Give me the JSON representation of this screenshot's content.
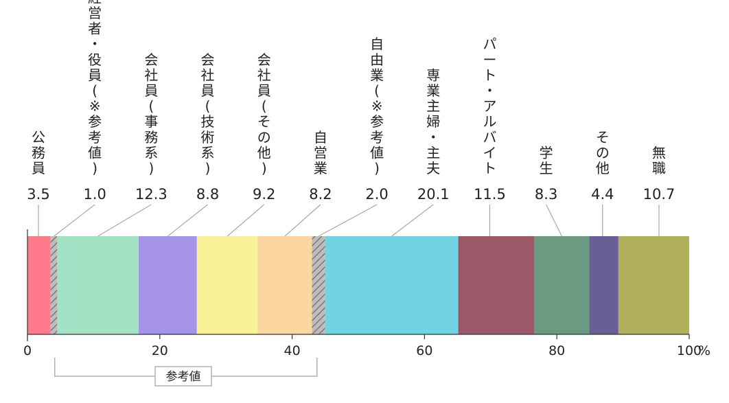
{
  "chart_data": {
    "type": "bar",
    "orientation": "horizontal-stacked",
    "unit": "%",
    "xlim": [
      0,
      100
    ],
    "ticks": [
      "0",
      "20",
      "40",
      "60",
      "80",
      "100"
    ],
    "tick_values": [
      0,
      20,
      40,
      60,
      80,
      100
    ],
    "segments": [
      {
        "label": "公務員",
        "value": 3.5,
        "display": "3.5",
        "color": "#ff7b8c",
        "hatched": false
      },
      {
        "label": "経営者・役員(※参考値)",
        "value": 1.0,
        "display": "1.0",
        "color": "#b8b8b8",
        "hatched": true
      },
      {
        "label": "会社員(事務系)",
        "value": 12.3,
        "display": "12.3",
        "color": "#a2e3c6",
        "hatched": false
      },
      {
        "label": "会社員(技術系)",
        "value": 8.8,
        "display": "8.8",
        "color": "#a593ea",
        "hatched": false
      },
      {
        "label": "会社員(その他)",
        "value": 9.2,
        "display": "9.2",
        "color": "#f8f394",
        "hatched": false
      },
      {
        "label": "自営業",
        "value": 8.2,
        "display": "8.2",
        "color": "#fcd6a1",
        "hatched": false
      },
      {
        "label": "自由業(※参考値)",
        "value": 2.0,
        "display": "2.0",
        "color": "#b8b8b8",
        "hatched": true
      },
      {
        "label": "専業主婦・主夫",
        "value": 20.1,
        "display": "20.1",
        "color": "#72d4e3",
        "hatched": false
      },
      {
        "label": "パート・アルバイト",
        "value": 11.5,
        "display": "11.5",
        "color": "#9b5869",
        "hatched": false
      },
      {
        "label": "学生",
        "value": 8.3,
        "display": "8.3",
        "color": "#6a9b82",
        "hatched": false
      },
      {
        "label": "その他",
        "value": 4.4,
        "display": "4.4",
        "color": "#695e96",
        "hatched": false
      },
      {
        "label": "無職",
        "value": 10.7,
        "display": "10.7",
        "color": "#b1b05a",
        "hatched": false
      }
    ],
    "reference_bracket_label": "参考値"
  }
}
